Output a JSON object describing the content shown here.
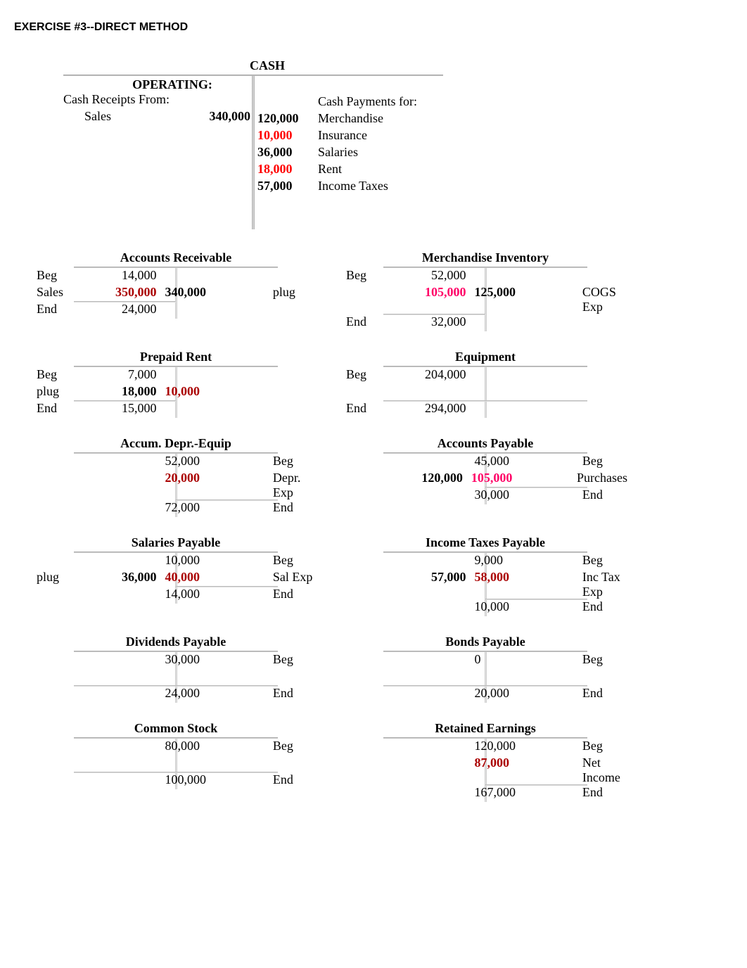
{
  "title": "EXERCISE #3--DIRECT METHOD",
  "cash": {
    "title": "CASH",
    "operating_label": "OPERATING:",
    "receipts_label": "Cash Receipts From:",
    "payments_label": "Cash Payments for:",
    "receipts": [
      {
        "label": "Sales",
        "dr": "340,000"
      }
    ],
    "payments": [
      {
        "cr": "120,000",
        "label": "Merchandise",
        "red": false
      },
      {
        "cr": "10,000",
        "label": "Insurance",
        "red": true
      },
      {
        "cr": "36,000",
        "label": "Salaries",
        "red": false
      },
      {
        "cr": "18,000",
        "label": "Rent",
        "red": true
      },
      {
        "cr": "57,000",
        "label": "Income Taxes",
        "red": false
      }
    ]
  },
  "accounts": [
    [
      {
        "title": "Accounts Receivable",
        "rows": [
          {
            "ll": "Beg",
            "dr": "14,000",
            "cr": "",
            "rl": "",
            "ul": ""
          },
          {
            "ll": "Sales",
            "dr": "350,000",
            "drcls": "darkred",
            "cr": "340,000",
            "crcls": "bold",
            "rl": "plug",
            "ul": "l"
          },
          {
            "ll": "End",
            "dr": "24,000",
            "cr": "",
            "rl": "",
            "ul": ""
          }
        ]
      },
      {
        "title": "Merchandise Inventory",
        "rows": [
          {
            "ll": "Beg",
            "dr": "52,000",
            "cr": "",
            "rl": "",
            "ul": ""
          },
          {
            "ll": "",
            "dr": "105,000",
            "drcls": "hotpink",
            "cr": "125,000",
            "crcls": "bold",
            "rl": "COGS Exp",
            "ul": "l"
          },
          {
            "ll": "End",
            "dr": "32,000",
            "cr": "",
            "rl": "",
            "ul": ""
          }
        ]
      }
    ],
    [
      {
        "title": "Prepaid Rent",
        "rows": [
          {
            "ll": "Beg",
            "dr": "7,000",
            "cr": "",
            "rl": "",
            "ul": ""
          },
          {
            "ll": "plug",
            "dr": "18,000",
            "drcls": "bold",
            "cr": "10,000",
            "crcls": "darkred",
            "rl": "",
            "ul": "l"
          },
          {
            "ll": "End",
            "dr": "15,000",
            "cr": "",
            "rl": "",
            "ul": ""
          }
        ]
      },
      {
        "title": "Equipment",
        "rows": [
          {
            "ll": "Beg",
            "dr": "204,000",
            "cr": "",
            "rl": "",
            "ul": ""
          },
          {
            "ll": "",
            "dr": "",
            "cr": "",
            "rl": "",
            "ul": "both"
          },
          {
            "ll": "End",
            "dr": "294,000",
            "cr": "",
            "rl": "",
            "ul": ""
          }
        ]
      }
    ],
    [
      {
        "title": "Accum. Depr.-Equip",
        "rows": [
          {
            "ll": "",
            "dr": "",
            "cr": "52,000",
            "rl": "Beg",
            "ul": ""
          },
          {
            "ll": "",
            "dr": "",
            "cr": "20,000",
            "crcls": "darkred",
            "rl": "Depr. Exp",
            "ul": "r"
          },
          {
            "ll": "",
            "dr": "",
            "cr": "72,000",
            "rl": "End",
            "ul": ""
          }
        ]
      },
      {
        "title": "Accounts Payable",
        "rows": [
          {
            "ll": "",
            "dr": "",
            "cr": "45,000",
            "rl": "Beg",
            "ul": ""
          },
          {
            "ll": "",
            "dr": "120,000",
            "drcls": "bold",
            "cr": "105,000",
            "crcls": "hotpink",
            "rl": "Purchases",
            "ul": "r"
          },
          {
            "ll": "",
            "dr": "",
            "cr": "30,000",
            "rl": "End",
            "ul": ""
          }
        ]
      }
    ],
    [
      {
        "title": "Salaries Payable",
        "rows": [
          {
            "ll": "",
            "dr": "",
            "cr": "10,000",
            "rl": "Beg",
            "ul": ""
          },
          {
            "ll": "plug",
            "dr": "36,000",
            "drcls": "bold",
            "cr": "40,000",
            "crcls": "darkred",
            "rl": "Sal Exp",
            "ul": "r"
          },
          {
            "ll": "",
            "dr": "",
            "cr": "14,000",
            "rl": "End",
            "ul": ""
          }
        ]
      },
      {
        "title": "Income Taxes Payable",
        "rows": [
          {
            "ll": "",
            "dr": "",
            "cr": "9,000",
            "rl": "Beg",
            "ul": ""
          },
          {
            "ll": "",
            "dr": "57,000",
            "drcls": "bold",
            "cr": "58,000",
            "crcls": "darkred",
            "rl": "Inc Tax Exp",
            "ul": "r"
          },
          {
            "ll": "",
            "dr": "",
            "cr": "10,000",
            "rl": "End",
            "ul": ""
          }
        ]
      }
    ],
    [
      {
        "title": "Dividends Payable",
        "rows": [
          {
            "ll": "",
            "dr": "",
            "cr": "30,000",
            "rl": "Beg",
            "ul": ""
          },
          {
            "ll": "",
            "dr": "",
            "cr": "",
            "rl": "",
            "ul": "both"
          },
          {
            "ll": "",
            "dr": "",
            "cr": "24,000",
            "rl": "End",
            "ul": ""
          }
        ]
      },
      {
        "title": "Bonds Payable",
        "rows": [
          {
            "ll": "",
            "dr": "",
            "cr": "0",
            "rl": "Beg",
            "ul": ""
          },
          {
            "ll": "",
            "dr": "",
            "cr": "",
            "rl": "",
            "ul": "both"
          },
          {
            "ll": "",
            "dr": "",
            "cr": "20,000",
            "rl": "End",
            "ul": ""
          }
        ]
      }
    ],
    [
      {
        "title": "Common Stock",
        "rows": [
          {
            "ll": "",
            "dr": "",
            "cr": "80,000",
            "rl": "Beg",
            "ul": ""
          },
          {
            "ll": "",
            "dr": "",
            "cr": "",
            "rl": "",
            "ul": "both"
          },
          {
            "ll": "",
            "dr": "",
            "cr": "100,000",
            "rl": "End",
            "ul": ""
          }
        ]
      },
      {
        "title": "Retained Earnings",
        "rows": [
          {
            "ll": "",
            "dr": "",
            "cr": "120,000",
            "rl": "Beg",
            "ul": ""
          },
          {
            "ll": "",
            "dr": "",
            "cr": "87,000",
            "crcls": "darkred",
            "rl": "Net Income",
            "ul": "r"
          },
          {
            "ll": "",
            "dr": "",
            "cr": "167,000",
            "rl": "End",
            "ul": ""
          }
        ]
      }
    ]
  ]
}
